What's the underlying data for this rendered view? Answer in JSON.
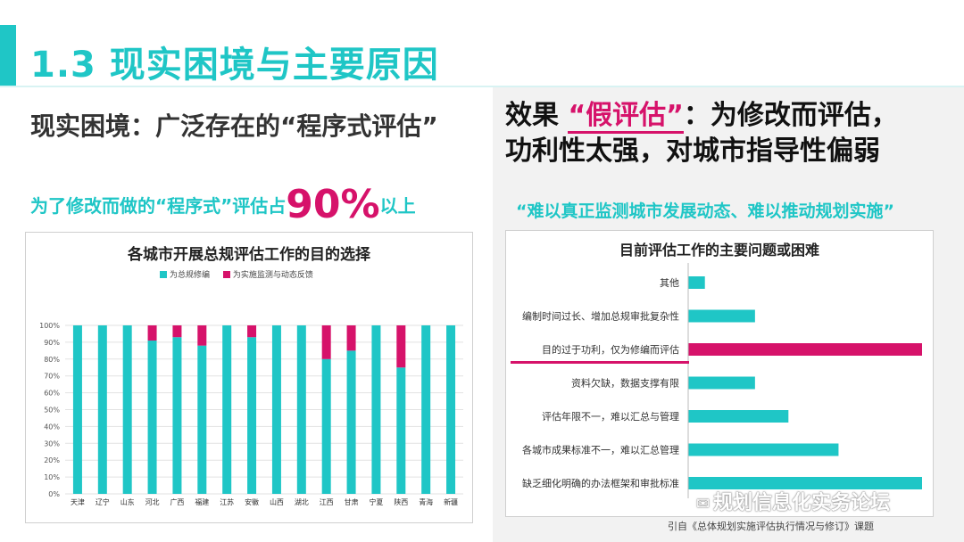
{
  "slide": {
    "title": "1.3 现实困境与主要原因",
    "left_heading": "现实困境：广泛存在的“程序式评估”",
    "left_sub_prefix": "为了修改而做的“程序式”评估占",
    "left_sub_big": "90%",
    "left_sub_suffix": "以上",
    "right_heading_1": "效果",
    "right_heading_quote": "“假评估”",
    "right_heading_2": "：为修改而评估，",
    "right_heading_3": "功利性太强，对城市指导性偏弱",
    "right_sub": "“难以真正监测城市发展动态、难以推动规划实施”",
    "watermark": "规划信息化实务论坛",
    "citation": "引自《总体规划实施评估执行情况与修订》课题"
  },
  "colors": {
    "teal": "#1fc6c6",
    "pink": "#d6126a"
  },
  "chart_data": [
    {
      "type": "bar",
      "stacked": true,
      "title": "各城市开展总规评估工作的目的选择",
      "categories": [
        "天津",
        "辽宁",
        "山东",
        "河北",
        "广西",
        "福建",
        "江苏",
        "安徽",
        "山西",
        "湖北",
        "江西",
        "甘肃",
        "宁夏",
        "陕西",
        "青海",
        "新疆"
      ],
      "series": [
        {
          "name": "为总规修编",
          "values": [
            100,
            100,
            100,
            91,
            93,
            88,
            100,
            93,
            100,
            100,
            80,
            85,
            100,
            75,
            100,
            100
          ]
        },
        {
          "name": "为实施监测与动态反馈",
          "values": [
            0,
            0,
            0,
            9,
            7,
            12,
            0,
            7,
            0,
            0,
            20,
            15,
            0,
            25,
            0,
            0
          ]
        }
      ],
      "y_ticks": [
        "0%",
        "10%",
        "20%",
        "30%",
        "40%",
        "50%",
        "60%",
        "70%",
        "80%",
        "90%",
        "100%"
      ],
      "ylim": [
        0,
        100
      ],
      "grid": true,
      "legend": "top"
    },
    {
      "type": "bar",
      "orientation": "horizontal",
      "title": "目前评估工作的主要问题或困难",
      "categories": [
        "其他",
        "编制时间过长、增加总规审批复杂性",
        "目的过于功利，仅为修编而评估",
        "资料欠缺，数据支撑有限",
        "评估年限不一，难以汇总与管理",
        "各城市成果标准不一，难以汇总管理",
        "缺乏细化明确的办法框架和审批标准"
      ],
      "values": [
        1,
        4,
        14,
        4,
        6,
        9,
        14
      ],
      "highlight_index": 2
    }
  ]
}
